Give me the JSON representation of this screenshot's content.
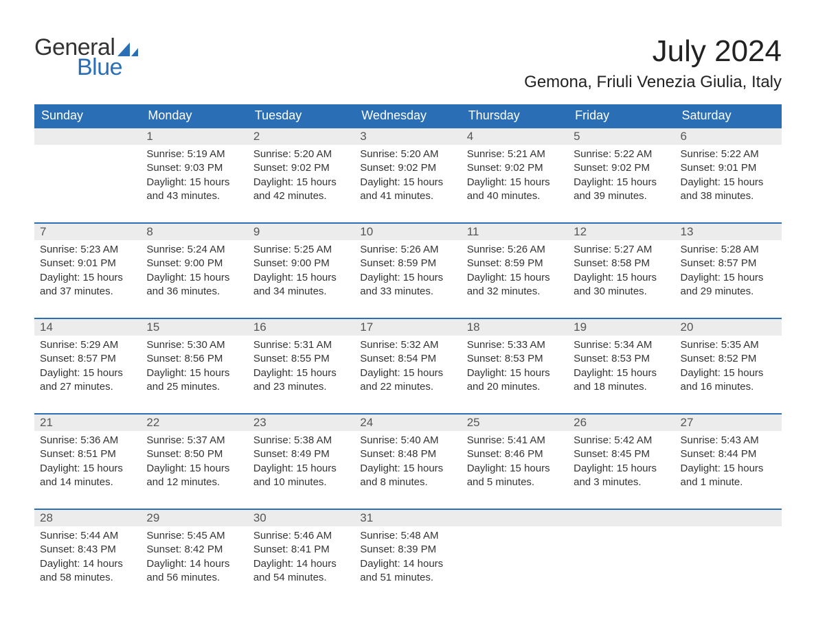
{
  "logo": {
    "word1": "General",
    "word2": "Blue",
    "word1_color": "#333333",
    "word2_color": "#2a6fb5",
    "mark_color": "#2a6fb5"
  },
  "title": "July 2024",
  "location": "Gemona, Friuli Venezia Giulia, Italy",
  "colors": {
    "header_bg": "#2a6fb5",
    "header_text": "#ffffff",
    "daynum_bg": "#ececec",
    "daynum_text": "#555555",
    "row_divider": "#2a6fb5",
    "body_text": "#333333",
    "background": "#ffffff"
  },
  "typography": {
    "title_fontsize": 44,
    "location_fontsize": 24,
    "weekday_fontsize": 18,
    "daynum_fontsize": 17,
    "detail_fontsize": 15,
    "font_family": "Arial"
  },
  "weekdays": [
    "Sunday",
    "Monday",
    "Tuesday",
    "Wednesday",
    "Thursday",
    "Friday",
    "Saturday"
  ],
  "weeks": [
    [
      {
        "day": "",
        "sunrise": "",
        "sunset": "",
        "daylight": ""
      },
      {
        "day": "1",
        "sunrise": "Sunrise: 5:19 AM",
        "sunset": "Sunset: 9:03 PM",
        "daylight": "Daylight: 15 hours and 43 minutes."
      },
      {
        "day": "2",
        "sunrise": "Sunrise: 5:20 AM",
        "sunset": "Sunset: 9:02 PM",
        "daylight": "Daylight: 15 hours and 42 minutes."
      },
      {
        "day": "3",
        "sunrise": "Sunrise: 5:20 AM",
        "sunset": "Sunset: 9:02 PM",
        "daylight": "Daylight: 15 hours and 41 minutes."
      },
      {
        "day": "4",
        "sunrise": "Sunrise: 5:21 AM",
        "sunset": "Sunset: 9:02 PM",
        "daylight": "Daylight: 15 hours and 40 minutes."
      },
      {
        "day": "5",
        "sunrise": "Sunrise: 5:22 AM",
        "sunset": "Sunset: 9:02 PM",
        "daylight": "Daylight: 15 hours and 39 minutes."
      },
      {
        "day": "6",
        "sunrise": "Sunrise: 5:22 AM",
        "sunset": "Sunset: 9:01 PM",
        "daylight": "Daylight: 15 hours and 38 minutes."
      }
    ],
    [
      {
        "day": "7",
        "sunrise": "Sunrise: 5:23 AM",
        "sunset": "Sunset: 9:01 PM",
        "daylight": "Daylight: 15 hours and 37 minutes."
      },
      {
        "day": "8",
        "sunrise": "Sunrise: 5:24 AM",
        "sunset": "Sunset: 9:00 PM",
        "daylight": "Daylight: 15 hours and 36 minutes."
      },
      {
        "day": "9",
        "sunrise": "Sunrise: 5:25 AM",
        "sunset": "Sunset: 9:00 PM",
        "daylight": "Daylight: 15 hours and 34 minutes."
      },
      {
        "day": "10",
        "sunrise": "Sunrise: 5:26 AM",
        "sunset": "Sunset: 8:59 PM",
        "daylight": "Daylight: 15 hours and 33 minutes."
      },
      {
        "day": "11",
        "sunrise": "Sunrise: 5:26 AM",
        "sunset": "Sunset: 8:59 PM",
        "daylight": "Daylight: 15 hours and 32 minutes."
      },
      {
        "day": "12",
        "sunrise": "Sunrise: 5:27 AM",
        "sunset": "Sunset: 8:58 PM",
        "daylight": "Daylight: 15 hours and 30 minutes."
      },
      {
        "day": "13",
        "sunrise": "Sunrise: 5:28 AM",
        "sunset": "Sunset: 8:57 PM",
        "daylight": "Daylight: 15 hours and 29 minutes."
      }
    ],
    [
      {
        "day": "14",
        "sunrise": "Sunrise: 5:29 AM",
        "sunset": "Sunset: 8:57 PM",
        "daylight": "Daylight: 15 hours and 27 minutes."
      },
      {
        "day": "15",
        "sunrise": "Sunrise: 5:30 AM",
        "sunset": "Sunset: 8:56 PM",
        "daylight": "Daylight: 15 hours and 25 minutes."
      },
      {
        "day": "16",
        "sunrise": "Sunrise: 5:31 AM",
        "sunset": "Sunset: 8:55 PM",
        "daylight": "Daylight: 15 hours and 23 minutes."
      },
      {
        "day": "17",
        "sunrise": "Sunrise: 5:32 AM",
        "sunset": "Sunset: 8:54 PM",
        "daylight": "Daylight: 15 hours and 22 minutes."
      },
      {
        "day": "18",
        "sunrise": "Sunrise: 5:33 AM",
        "sunset": "Sunset: 8:53 PM",
        "daylight": "Daylight: 15 hours and 20 minutes."
      },
      {
        "day": "19",
        "sunrise": "Sunrise: 5:34 AM",
        "sunset": "Sunset: 8:53 PM",
        "daylight": "Daylight: 15 hours and 18 minutes."
      },
      {
        "day": "20",
        "sunrise": "Sunrise: 5:35 AM",
        "sunset": "Sunset: 8:52 PM",
        "daylight": "Daylight: 15 hours and 16 minutes."
      }
    ],
    [
      {
        "day": "21",
        "sunrise": "Sunrise: 5:36 AM",
        "sunset": "Sunset: 8:51 PM",
        "daylight": "Daylight: 15 hours and 14 minutes."
      },
      {
        "day": "22",
        "sunrise": "Sunrise: 5:37 AM",
        "sunset": "Sunset: 8:50 PM",
        "daylight": "Daylight: 15 hours and 12 minutes."
      },
      {
        "day": "23",
        "sunrise": "Sunrise: 5:38 AM",
        "sunset": "Sunset: 8:49 PM",
        "daylight": "Daylight: 15 hours and 10 minutes."
      },
      {
        "day": "24",
        "sunrise": "Sunrise: 5:40 AM",
        "sunset": "Sunset: 8:48 PM",
        "daylight": "Daylight: 15 hours and 8 minutes."
      },
      {
        "day": "25",
        "sunrise": "Sunrise: 5:41 AM",
        "sunset": "Sunset: 8:46 PM",
        "daylight": "Daylight: 15 hours and 5 minutes."
      },
      {
        "day": "26",
        "sunrise": "Sunrise: 5:42 AM",
        "sunset": "Sunset: 8:45 PM",
        "daylight": "Daylight: 15 hours and 3 minutes."
      },
      {
        "day": "27",
        "sunrise": "Sunrise: 5:43 AM",
        "sunset": "Sunset: 8:44 PM",
        "daylight": "Daylight: 15 hours and 1 minute."
      }
    ],
    [
      {
        "day": "28",
        "sunrise": "Sunrise: 5:44 AM",
        "sunset": "Sunset: 8:43 PM",
        "daylight": "Daylight: 14 hours and 58 minutes."
      },
      {
        "day": "29",
        "sunrise": "Sunrise: 5:45 AM",
        "sunset": "Sunset: 8:42 PM",
        "daylight": "Daylight: 14 hours and 56 minutes."
      },
      {
        "day": "30",
        "sunrise": "Sunrise: 5:46 AM",
        "sunset": "Sunset: 8:41 PM",
        "daylight": "Daylight: 14 hours and 54 minutes."
      },
      {
        "day": "31",
        "sunrise": "Sunrise: 5:48 AM",
        "sunset": "Sunset: 8:39 PM",
        "daylight": "Daylight: 14 hours and 51 minutes."
      },
      {
        "day": "",
        "sunrise": "",
        "sunset": "",
        "daylight": ""
      },
      {
        "day": "",
        "sunrise": "",
        "sunset": "",
        "daylight": ""
      },
      {
        "day": "",
        "sunrise": "",
        "sunset": "",
        "daylight": ""
      }
    ]
  ]
}
